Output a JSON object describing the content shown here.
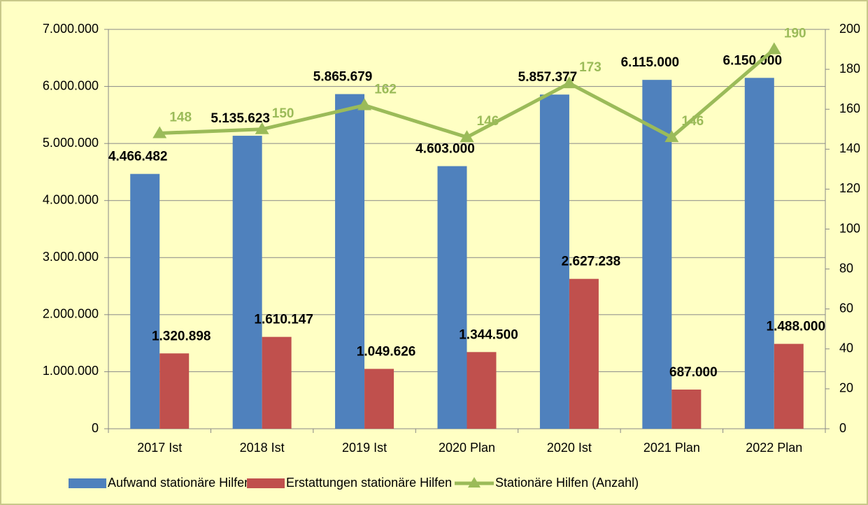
{
  "chart_data": {
    "type": "bar",
    "categories": [
      "2017 Ist",
      "2018 Ist",
      "2019 Ist",
      "2020 Plan",
      "2020 Ist",
      "2021 Plan",
      "2022 Plan"
    ],
    "series": [
      {
        "name": "Aufwand stationäre Hilfen",
        "color": "#4f81bd",
        "values": [
          4466482,
          5135623,
          5865679,
          4603000,
          5857377,
          6115000,
          6150000
        ],
        "value_labels": [
          "4.466.482",
          "5.135.623",
          "5.865.679",
          "4.603.000",
          "5.857.377",
          "6.115.000",
          "6.150.000"
        ]
      },
      {
        "name": "Erstattungen stationäre Hilfen",
        "color": "#c0504d",
        "values": [
          1320898,
          1610147,
          1049626,
          1344500,
          2627238,
          687000,
          1488000
        ],
        "value_labels": [
          "1.320.898",
          "1.610.147",
          "1.049.626",
          "1.344.500",
          "2.627.238",
          "687.000",
          "1.488.000"
        ]
      },
      {
        "name": "Stationäre Hilfen (Anzahl)",
        "color": "#9bbb59",
        "type": "line",
        "axis": "y2",
        "values": [
          148,
          150,
          162,
          146,
          173,
          146,
          190
        ]
      }
    ],
    "ylim": [
      0,
      7000000
    ],
    "yticks": [
      0,
      {
        "value": 1000000,
        "label": "1.000.000"
      },
      {
        "value": 2000000,
        "label": "2.000.000"
      },
      {
        "value": 3000000,
        "label": "3.000.000"
      },
      {
        "value": 4000000,
        "label": "4.000.000"
      },
      {
        "value": 5000000,
        "label": "5.000.000"
      },
      {
        "value": 6000000,
        "label": "6.000.000"
      },
      {
        "value": 7000000,
        "label": "7.000.000"
      }
    ],
    "y2lim": [
      0,
      200
    ],
    "y2ticks": [
      0,
      20,
      40,
      60,
      80,
      100,
      120,
      140,
      160,
      180,
      200
    ],
    "grid": true,
    "legend": "bottom"
  }
}
